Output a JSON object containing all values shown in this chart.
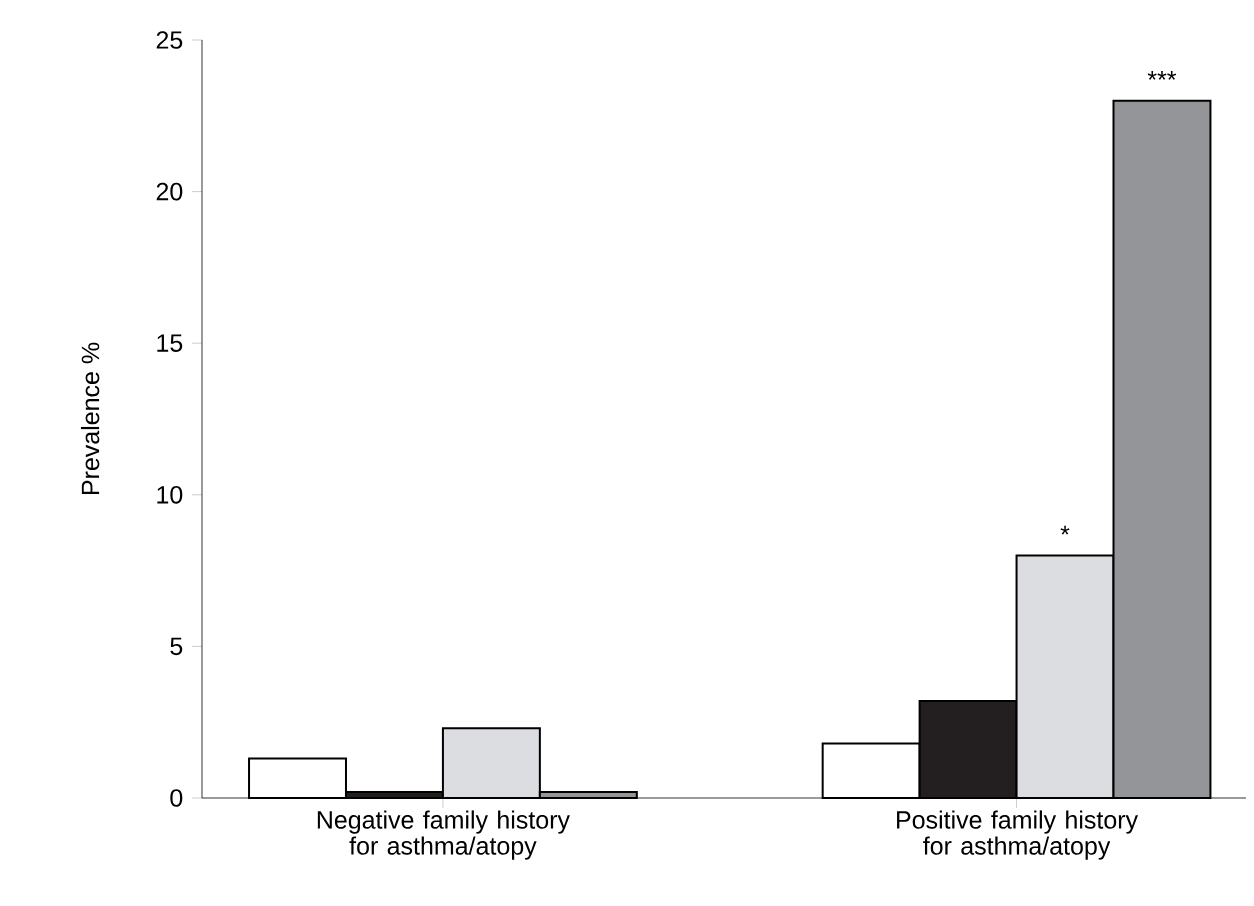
{
  "chart_data": {
    "type": "bar",
    "ylabel": "Prevalence %",
    "categories": [
      "Negative family history for asthma/atopy",
      "Positive family history for asthma/atopy"
    ],
    "series": [
      {
        "color": "#ffffff",
        "values": [
          1.3,
          1.8
        ]
      },
      {
        "color": "#231f20",
        "values": [
          0.2,
          3.2
        ]
      },
      {
        "color": "#dcdde0",
        "values": [
          2.3,
          8.0
        ]
      },
      {
        "color": "#939598",
        "values": [
          0.2,
          23.0
        ]
      }
    ],
    "ylim": [
      0,
      25
    ],
    "yticks": [
      0,
      5,
      10,
      15,
      20,
      25
    ],
    "annotations": [
      {
        "text": "*",
        "x": "Positive family history for asthma/atopy",
        "y": 8.0
      },
      "***"
    ]
  }
}
